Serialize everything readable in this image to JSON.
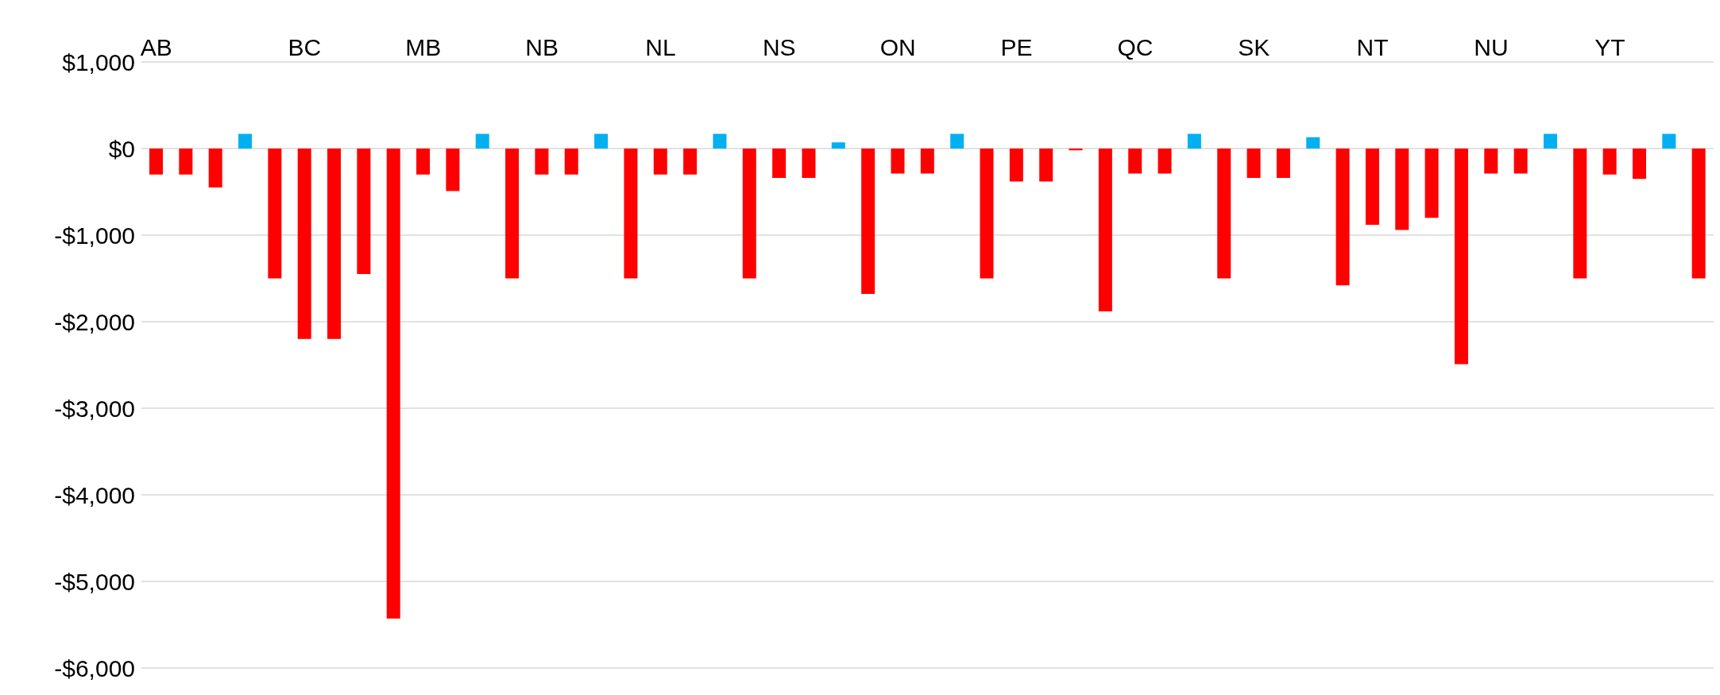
{
  "chart_data": {
    "type": "bar",
    "categories": [
      "AB",
      null,
      null,
      null,
      null,
      "BC",
      null,
      null,
      null,
      "MB",
      null,
      null,
      null,
      "NB",
      null,
      null,
      null,
      "NL",
      null,
      null,
      null,
      "NS",
      null,
      null,
      null,
      "ON",
      null,
      null,
      null,
      "PE",
      null,
      null,
      null,
      "QC",
      null,
      null,
      null,
      "SK",
      null,
      null,
      null,
      "NT",
      null,
      null,
      null,
      "NU",
      null,
      null,
      null,
      "YT",
      null,
      null,
      null
    ],
    "values": [
      -300,
      -300,
      -450,
      170,
      -1500,
      -2200,
      -2200,
      -1450,
      -5430,
      -300,
      -490,
      170,
      -1500,
      -300,
      -300,
      170,
      -1500,
      -300,
      -300,
      170,
      -1500,
      -340,
      -340,
      70,
      -1680,
      -290,
      -290,
      170,
      -1500,
      -380,
      -380,
      -20,
      -1880,
      -290,
      -290,
      170,
      -1500,
      -340,
      -340,
      130,
      -1580,
      -880,
      -940,
      -800,
      -2490,
      -290,
      -290,
      170,
      -1500,
      -300,
      -350,
      170,
      -1500
    ],
    "colors": [
      "#ff0000",
      "#ff0000",
      "#ff0000",
      "#00b0f0",
      "#ff0000",
      "#ff0000",
      "#ff0000",
      "#ff0000",
      "#ff0000",
      "#ff0000",
      "#ff0000",
      "#00b0f0",
      "#ff0000",
      "#ff0000",
      "#ff0000",
      "#00b0f0",
      "#ff0000",
      "#ff0000",
      "#ff0000",
      "#00b0f0",
      "#ff0000",
      "#ff0000",
      "#ff0000",
      "#00b0f0",
      "#ff0000",
      "#ff0000",
      "#ff0000",
      "#00b0f0",
      "#ff0000",
      "#ff0000",
      "#ff0000",
      "#ff0000",
      "#ff0000",
      "#ff0000",
      "#ff0000",
      "#00b0f0",
      "#ff0000",
      "#ff0000",
      "#ff0000",
      "#00b0f0",
      "#ff0000",
      "#ff0000",
      "#ff0000",
      "#ff0000",
      "#ff0000",
      "#ff0000",
      "#ff0000",
      "#00b0f0",
      "#ff0000",
      "#ff0000",
      "#ff0000",
      "#00b0f0",
      "#ff0000"
    ],
    "ylim": [
      -6000,
      1000
    ],
    "yticks": [
      {
        "value": 1000,
        "label": "$1,000"
      },
      {
        "value": 0,
        "label": "$0"
      },
      {
        "value": -1000,
        "label": "-$1,000"
      },
      {
        "value": -2000,
        "label": "-$2,000"
      },
      {
        "value": -3000,
        "label": "-$3,000"
      },
      {
        "value": -4000,
        "label": "-$4,000"
      },
      {
        "value": -5000,
        "label": "-$5,000"
      },
      {
        "value": -6000,
        "label": "-$6,000"
      }
    ],
    "grid": "y"
  }
}
